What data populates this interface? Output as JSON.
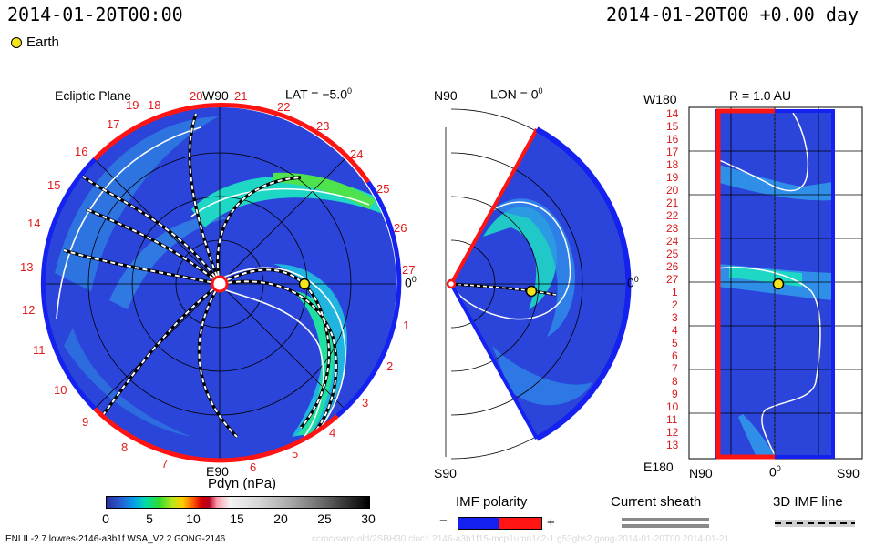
{
  "header": {
    "time_left": "2014-01-20T00:00",
    "time_right": "2014-01-20T00 +0.00 day",
    "earth_label": "Earth"
  },
  "ecliptic": {
    "title": "Ecliptic Plane",
    "lat_label": "LAT = −5.0",
    "lat_sup": "0",
    "top_label": "W90",
    "bottom_label": "E90",
    "right_label": "0",
    "right_sup": "0",
    "carrington_numbers": [
      "19",
      "20",
      "21",
      "22",
      "23",
      "24",
      "25",
      "26",
      "27",
      "1",
      "2",
      "3",
      "4",
      "5",
      "6",
      "7",
      "8",
      "9",
      "10",
      "11",
      "12",
      "13",
      "14",
      "15",
      "16",
      "17",
      "18"
    ]
  },
  "meridional": {
    "top_label": "N90",
    "bottom_label": "S90",
    "title": "LON = 0",
    "title_sup": "0",
    "right_label": "0",
    "right_sup": "0"
  },
  "shell": {
    "title": "R = 1.0 AU",
    "top_left_label": "W180",
    "bottom_left_label": "E180",
    "bottom_labels": [
      "N90",
      "0",
      "S90"
    ],
    "bottom_mid_sup": "0",
    "lat_numbers": [
      "14",
      "15",
      "16",
      "17",
      "18",
      "19",
      "20",
      "21",
      "22",
      "23",
      "24",
      "25",
      "26",
      "27",
      "1",
      "2",
      "3",
      "4",
      "5",
      "6",
      "7",
      "8",
      "9",
      "10",
      "11",
      "12",
      "13"
    ]
  },
  "colorbar": {
    "title": "Pdyn (nPa)",
    "ticks": [
      "0",
      "5",
      "10",
      "15",
      "20",
      "25",
      "30"
    ]
  },
  "legend": {
    "imf_title": "IMF polarity",
    "imf_minus": "−",
    "imf_plus": "+",
    "current_sheath": "Current sheath",
    "imf_3d": "3D IMF line"
  },
  "footer": {
    "left": "ENLIL-2.7 lowres-2146-a3b1f WSA_V2.2 GONG-2146",
    "right": "ccmc/swrc-old/2SBH30.cluc1.2146-a3b1f15-mcp1umn1c2-1.g53gbs2.gong-2014-01-20T00  2014-01-21"
  },
  "colors": {
    "polarity_negative": "#1421f0",
    "polarity_positive": "#ff1414",
    "background_field": "#2b44d9",
    "high_density": "#1fe0a0",
    "carrington_red": "#e21b1b",
    "earth": "#f3e51c"
  }
}
